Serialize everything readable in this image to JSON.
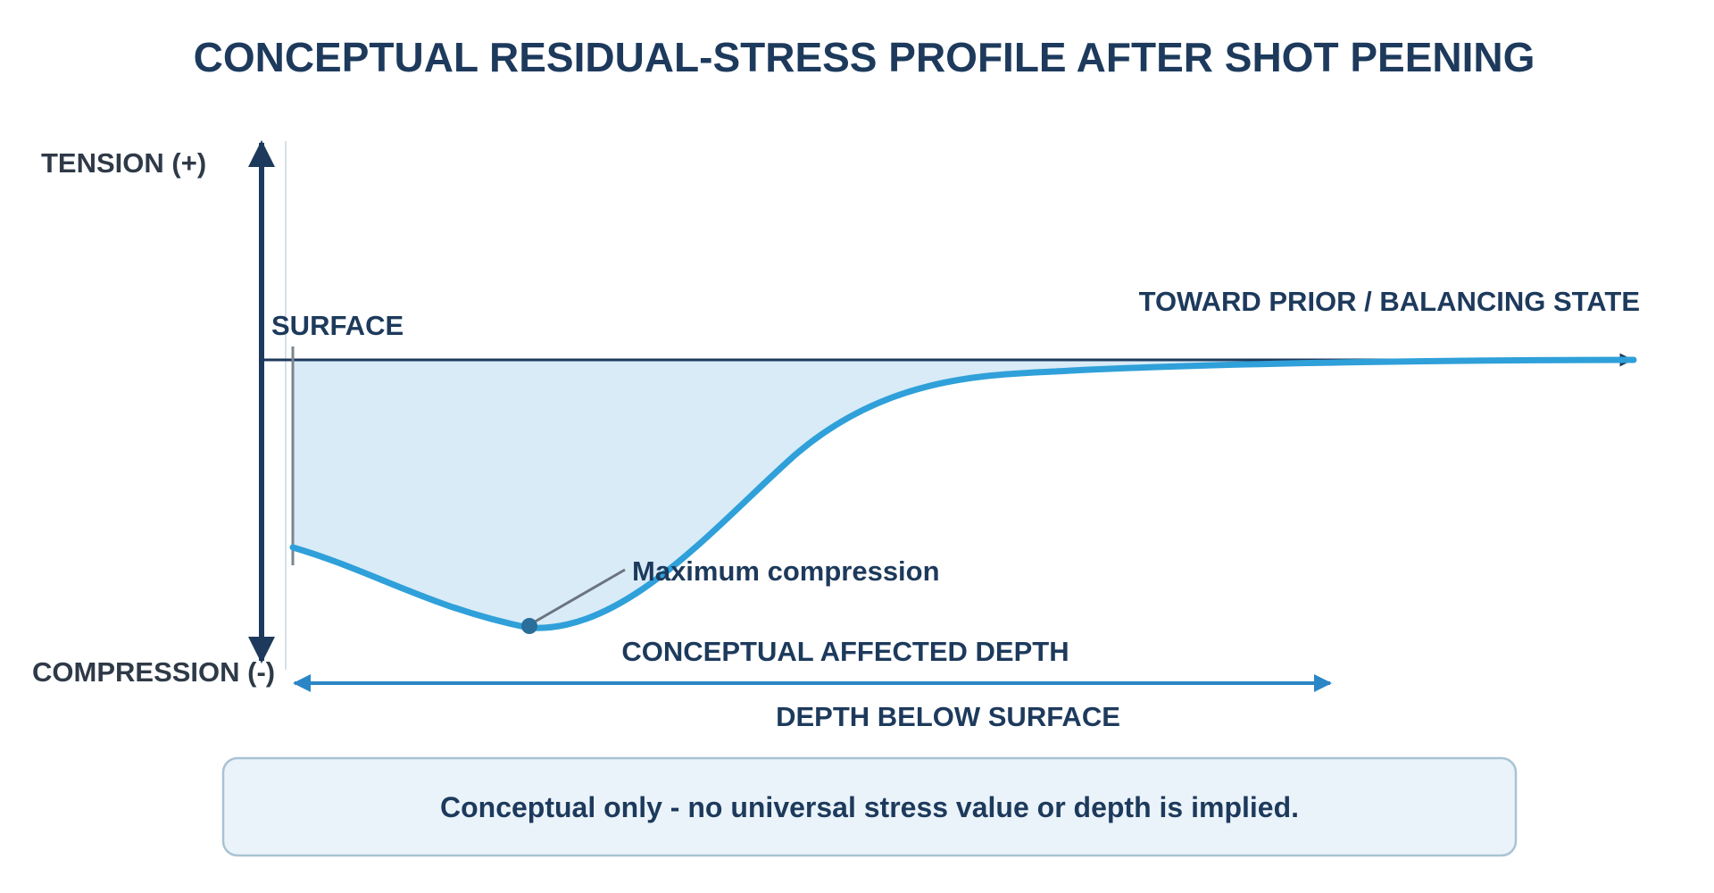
{
  "title": "CONCEPTUAL RESIDUAL-STRESS PROFILE AFTER SHOT PEENING",
  "axes": {
    "y_positive_label": "TENSION (+)",
    "y_negative_label": "COMPRESSION (-)",
    "x_label": "DEPTH BELOW SURFACE"
  },
  "annotations": {
    "surface": "SURFACE",
    "toward_balance": "TOWARD PRIOR / BALANCING STATE",
    "max_compression": "Maximum compression",
    "affected_depth": "CONCEPTUAL AFFECTED DEPTH"
  },
  "note": "Conceptual only - no universal stress value or depth is implied.",
  "colors": {
    "title": "#1d3a5c",
    "axis": "#1d3a5c",
    "curve": "#2fa0d9",
    "fill": "#d8ebf7",
    "depth_arrow": "#2a86c6",
    "note_bg": "#eaf3fa",
    "note_border": "#a9c3d3"
  }
}
